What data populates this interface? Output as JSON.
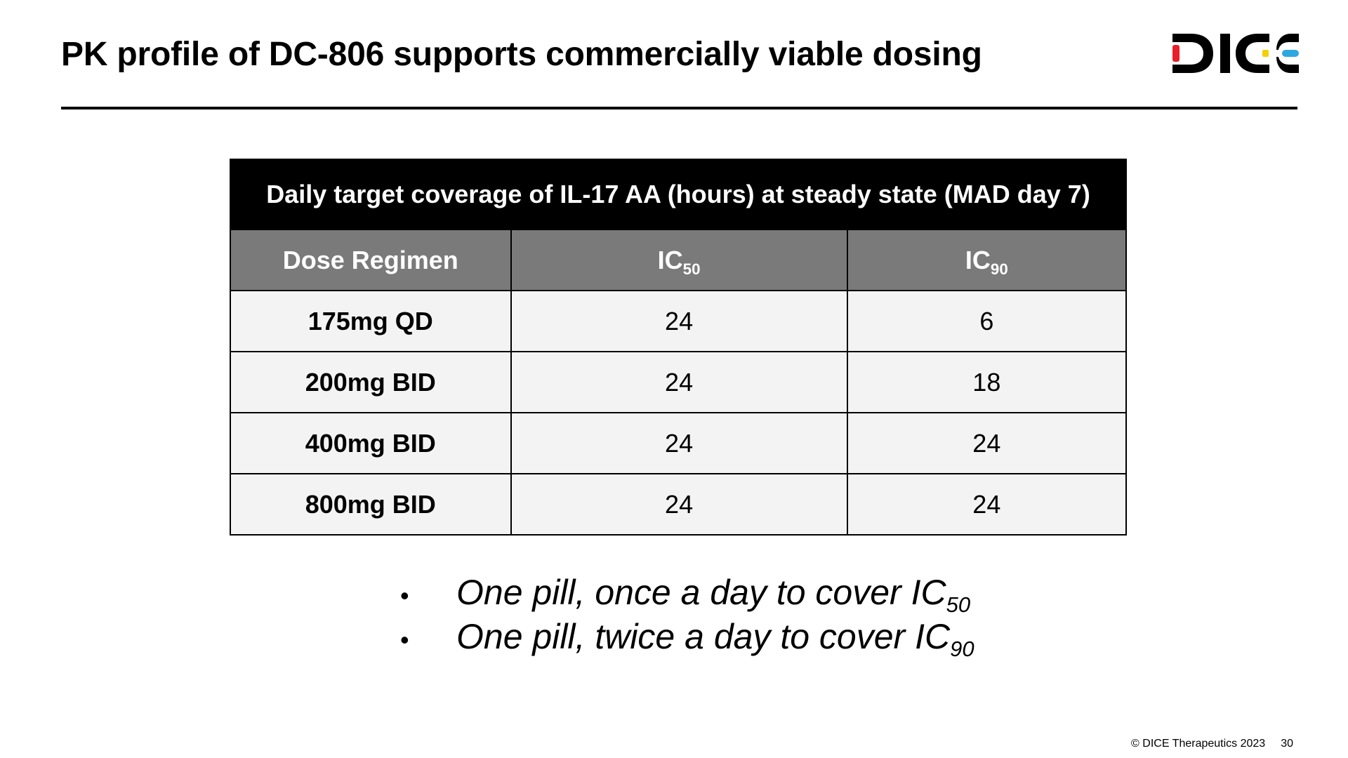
{
  "slide": {
    "title": "PK profile of DC-806 supports commercially viable dosing"
  },
  "logo": {
    "text": "DICE",
    "colors": {
      "main": "#000000",
      "red": "#e8202a",
      "yellow": "#f5d000",
      "blue": "#2da8e0"
    }
  },
  "table": {
    "title": "Daily target coverage of IL-17 AA (hours) at steady state (MAD day 7)",
    "headers": {
      "dose": "Dose Regimen",
      "ic50_base": "IC",
      "ic50_sub": "50",
      "ic90_base": "IC",
      "ic90_sub": "90"
    },
    "rows": [
      {
        "dose": "175mg QD",
        "ic50": "24",
        "ic90": "6"
      },
      {
        "dose": "200mg BID",
        "ic50": "24",
        "ic90": "18"
      },
      {
        "dose": "400mg BID",
        "ic50": "24",
        "ic90": "24"
      },
      {
        "dose": "800mg BID",
        "ic50": "24",
        "ic90": "24"
      }
    ]
  },
  "bullets": [
    {
      "symbol": "•",
      "text": "One pill, once a day to cover IC",
      "sub": "50"
    },
    {
      "symbol": "•",
      "text": "One pill, twice a day to cover IC",
      "sub": "90"
    }
  ],
  "footer": {
    "copyright": "© DICE Therapeutics 2023",
    "page": "30"
  }
}
